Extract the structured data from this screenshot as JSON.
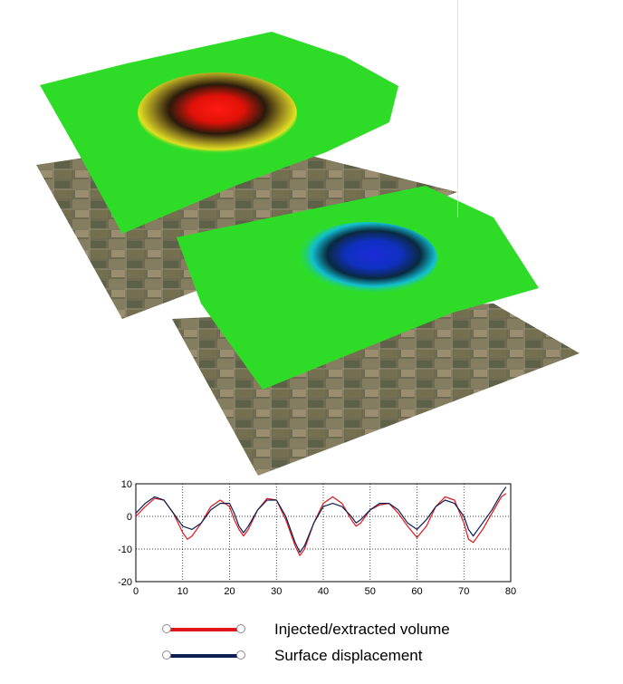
{
  "colors": {
    "volume": "#e0161b",
    "displacement": "#0d1f52",
    "uplift_layer_base": "#2edc28",
    "subsidence_layer_base": "#2edc28"
  },
  "legend": {
    "items": [
      {
        "label": "Injected/extracted volume",
        "color": "#e0161b"
      },
      {
        "label": "Surface displacement",
        "color": "#0d1f52"
      }
    ]
  },
  "chart_data": {
    "type": "line",
    "title": "",
    "xlabel": "",
    "ylabel": "",
    "xlim": [
      0,
      80
    ],
    "ylim": [
      -20,
      10
    ],
    "xticks": [
      0,
      10,
      20,
      30,
      40,
      50,
      60,
      70,
      80
    ],
    "yticks": [
      10,
      0,
      -10,
      -20
    ],
    "grid": "dotted",
    "legend_position": "below",
    "series": [
      {
        "color": "#e0161b",
        "x": [
          0,
          2,
          4,
          6,
          8,
          10,
          11,
          12,
          14,
          16,
          18,
          20,
          21,
          22,
          23,
          24,
          26,
          28,
          30,
          32,
          34,
          35,
          36,
          38,
          40,
          42,
          44,
          46,
          47,
          48,
          50,
          52,
          54,
          56,
          58,
          60,
          62,
          64,
          66,
          68,
          70,
          71,
          72,
          74,
          76,
          78,
          79
        ],
        "y": [
          0,
          3,
          5.5,
          5,
          1,
          -5,
          -7,
          -6,
          -2,
          3,
          5,
          3,
          -1,
          -4,
          -6,
          -4,
          2,
          5.5,
          5,
          -1,
          -9,
          -12,
          -10,
          -2,
          4,
          6,
          4,
          -1,
          -3,
          -2,
          2,
          3.5,
          4,
          1,
          -3,
          -6.5,
          -3,
          3,
          6,
          5,
          -2,
          -7,
          -8,
          -4,
          1,
          6,
          7
        ]
      },
      {
        "color": "#0d1f52",
        "x": [
          0,
          2,
          4,
          6,
          8,
          10,
          12,
          14,
          16,
          18,
          20,
          21,
          22,
          23,
          24,
          26,
          28,
          30,
          32,
          34,
          35,
          36,
          38,
          40,
          42,
          44,
          46,
          47,
          48,
          50,
          52,
          54,
          56,
          58,
          60,
          62,
          64,
          66,
          68,
          70,
          71,
          72,
          74,
          76,
          78,
          79
        ],
        "y": [
          1,
          4,
          6,
          5,
          1,
          -3,
          -4,
          -2,
          2,
          4,
          4,
          1,
          -3,
          -5,
          -3,
          2,
          5,
          5,
          0,
          -8,
          -11,
          -9,
          -2,
          3,
          4,
          3,
          0,
          -2,
          -1,
          2,
          4,
          4,
          2,
          -2,
          -4,
          -1,
          3,
          5,
          4,
          0,
          -4,
          -6,
          -2,
          2,
          7,
          9
        ]
      }
    ]
  }
}
